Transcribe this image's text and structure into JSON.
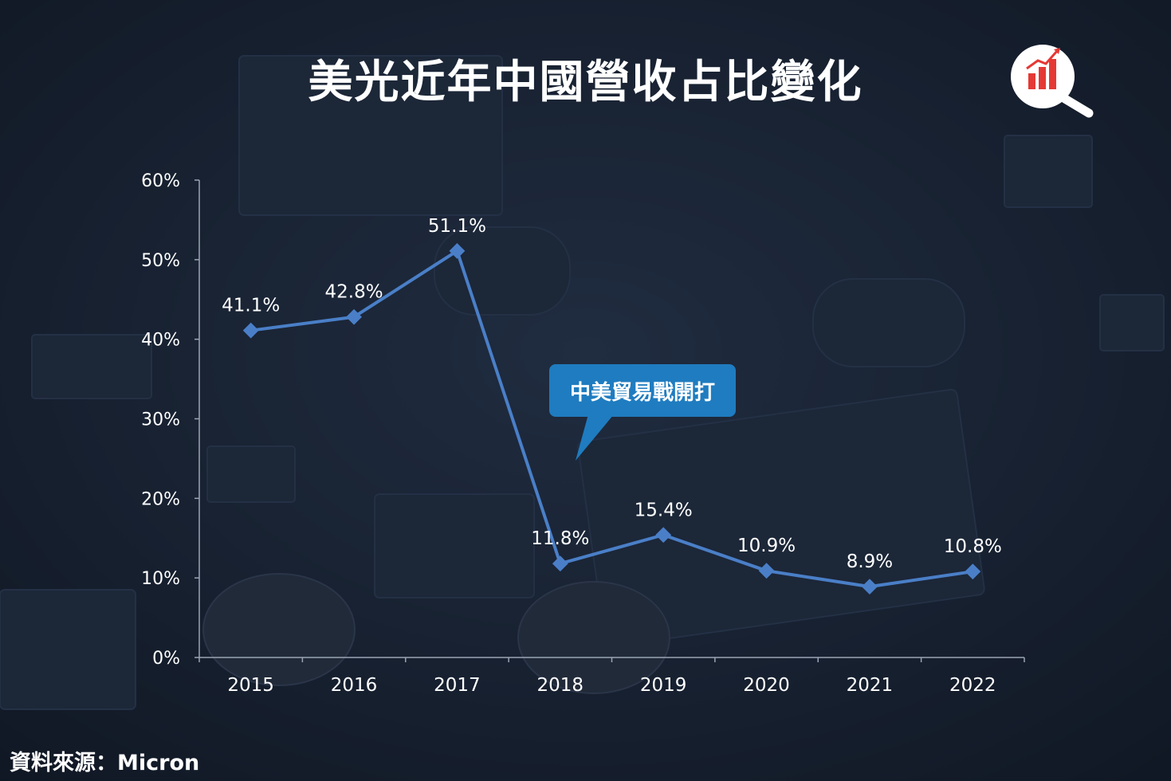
{
  "title": "美光近年中國營收占比變化",
  "logo_icon": "magnifier-bar-chart-icon",
  "annotation": "中美貿易戰開打",
  "source": "資料來源：Micron",
  "colors": {
    "line": "#4a7fc8",
    "callout": "#1f7cc0",
    "logo_accent": "#e53935",
    "text": "#ffffff"
  },
  "chart_data": {
    "type": "line",
    "title": "美光近年中國營收占比變化",
    "xlabel": "",
    "ylabel": "",
    "categories": [
      "2015",
      "2016",
      "2017",
      "2018",
      "2019",
      "2020",
      "2021",
      "2022"
    ],
    "series": [
      {
        "values": [
          41.1,
          42.8,
          51.1,
          11.8,
          15.4,
          10.9,
          8.9,
          10.8
        ],
        "labels": [
          "41.1%",
          "42.8%",
          "51.1%",
          "11.8%",
          "15.4%",
          "10.9%",
          "8.9%",
          "10.8%"
        ]
      }
    ],
    "ylim": [
      0,
      60
    ],
    "yticks": [
      "0%",
      "10%",
      "20%",
      "30%",
      "40%",
      "50%",
      "60%"
    ],
    "grid": false,
    "legend": "none"
  }
}
